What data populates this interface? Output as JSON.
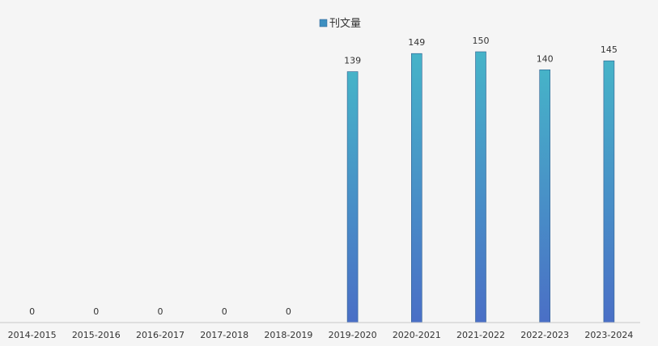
{
  "chart_data": {
    "type": "bar",
    "categories": [
      "2014-2015",
      "2015-2016",
      "2016-2017",
      "2017-2018",
      "2018-2019",
      "2019-2020",
      "2020-2021",
      "2021-2022",
      "2022-2023",
      "2023-2024"
    ],
    "series": [
      {
        "name": "刊文量",
        "values": [
          0,
          0,
          0,
          0,
          0,
          139,
          149,
          150,
          140,
          145
        ]
      }
    ],
    "title": "",
    "xlabel": "",
    "ylabel": "",
    "ylim": [
      0,
      150
    ],
    "grid": false,
    "legend": "top",
    "data_labels": true,
    "colors": {
      "bar_top": "#46b3c8",
      "bar_bottom": "#4a6fc6",
      "bar_stroke": "#2f5f8f",
      "legend_swatch": "#3d8fc0",
      "axis": "#c8c8c8"
    }
  }
}
